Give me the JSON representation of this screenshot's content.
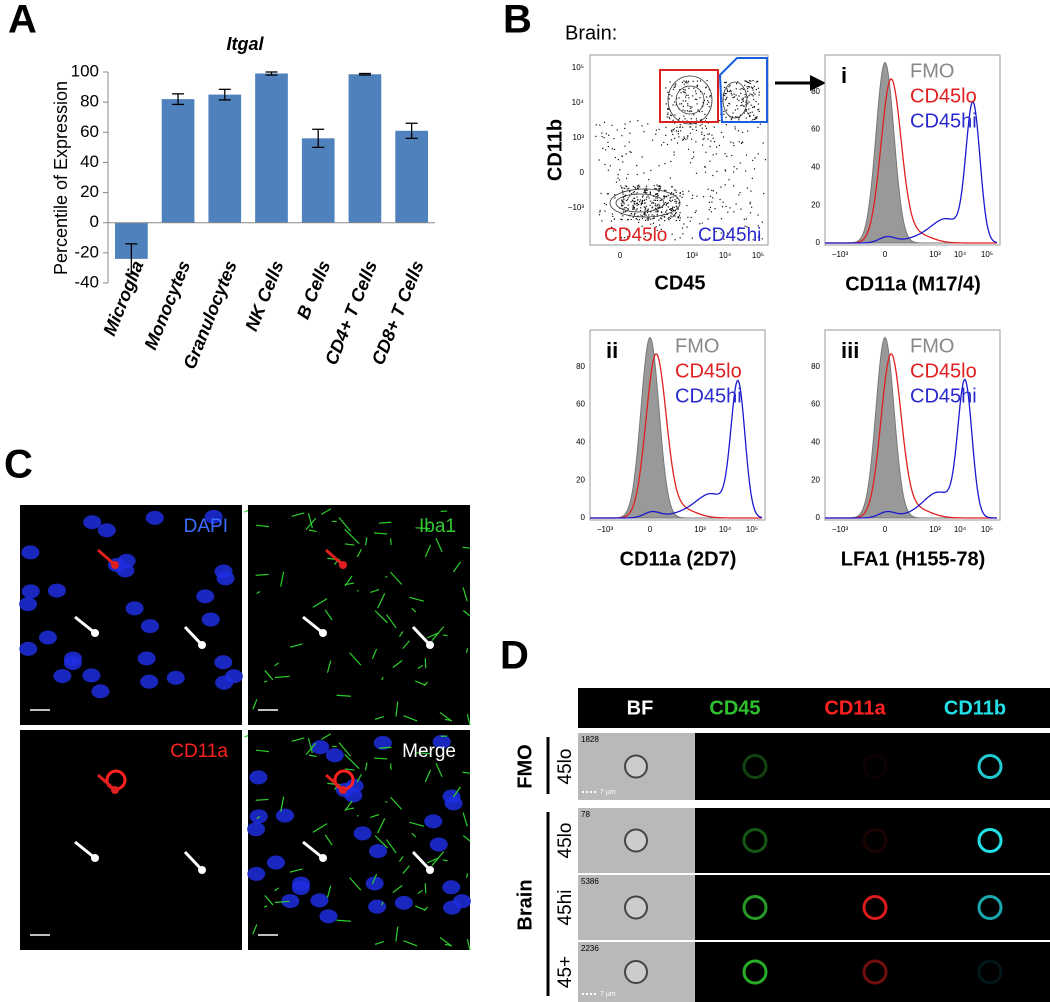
{
  "panel_labels": [
    "A",
    "B",
    "C",
    "D"
  ],
  "chart_data": {
    "type": "bar",
    "title": "Itgal",
    "y_label": "Percentile of Expression",
    "categories": [
      "Microglia",
      "Monocytes",
      "Granulocytes",
      "NK Cells",
      "B Cells",
      "CD4+ T Cells",
      "CD8+ T Cells"
    ],
    "values": [
      -24,
      82,
      85,
      99,
      56,
      98.5,
      61
    ],
    "errors": [
      10,
      3.5,
      3.5,
      1,
      6,
      0.5,
      5
    ],
    "color": "#4f81bd",
    "ylim": [
      -40,
      100
    ],
    "yticks": [
      -40,
      -20,
      0,
      20,
      40,
      60,
      80,
      100
    ]
  },
  "flow": {
    "title": "Brain:",
    "dot_plot": {
      "y_label": "CD11b",
      "x_label": "CD45",
      "gates": [
        "CD45lo",
        "CD45hi"
      ],
      "yticks": [
        "10⁵",
        "10⁴",
        "10³",
        "0",
        "−10³"
      ],
      "xticks": [
        "0",
        "10³",
        "10⁴",
        "10⁵"
      ]
    },
    "hist_yticks": [
      0,
      20,
      40,
      60,
      80
    ],
    "hist_xticks": [
      "−10³",
      "0",
      "10³",
      "10⁴",
      "10⁵"
    ],
    "legend": [
      "FMO",
      "CD45lo",
      "CD45hi"
    ],
    "histograms": [
      {
        "roman": "i",
        "x_label": "CD11a (M17/4)"
      },
      {
        "roman": "ii",
        "x_label": "CD11a (2D7)"
      },
      {
        "roman": "iii",
        "x_label": "LFA1 (H155-78)"
      }
    ]
  },
  "microscopy": {
    "channels": [
      "DAPI",
      "Iba1",
      "CD11a",
      "Merge"
    ]
  },
  "imaging": {
    "columns": [
      "BF",
      "CD45",
      "CD11a",
      "CD11b"
    ],
    "groups": [
      {
        "label": "FMO",
        "rows": [
          {
            "label": "45lo",
            "count": "1828"
          }
        ]
      },
      {
        "label": "Brain",
        "rows": [
          {
            "label": "45lo",
            "count": "78"
          },
          {
            "label": "45hi",
            "count": "5386"
          },
          {
            "label": "45+",
            "count": "2236"
          }
        ]
      }
    ],
    "scale": "7 µm"
  }
}
